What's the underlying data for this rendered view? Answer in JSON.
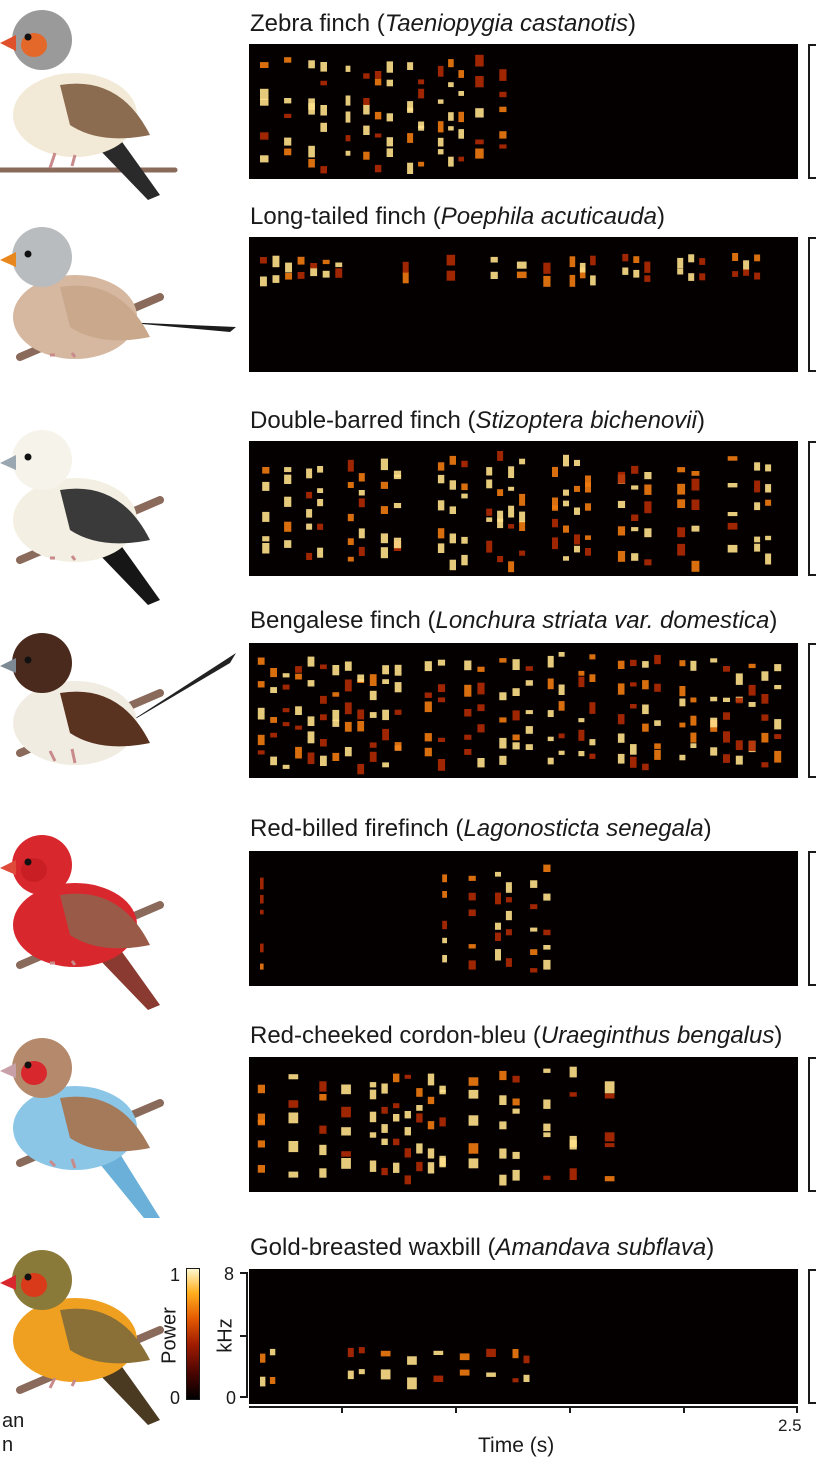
{
  "species": [
    {
      "common": "Zebra finch",
      "scientific": "Taeniopygia castanotis",
      "colors": {
        "body": "#f2ead6",
        "head": "#9a9a9a",
        "cheek": "#e4682a",
        "beak": "#e0502a",
        "wing": "#8c6c50",
        "tail": "#2a2a2a"
      }
    },
    {
      "common": "Long-tailed finch",
      "scientific": "Poephila acuticauda",
      "colors": {
        "body": "#d6b8a0",
        "head": "#b9bcbe",
        "cheek": "#b9bcbe",
        "beak": "#e8871e",
        "wing": "#c9a88c",
        "tail": "#1c1c1c"
      }
    },
    {
      "common": "Double-barred finch",
      "scientific": "Stizoptera bichenovii",
      "colors": {
        "body": "#f3efe2",
        "head": "#f6f3ea",
        "cheek": "#f6f3ea",
        "beak": "#9aa6b0",
        "wing": "#3a3a3a",
        "tail": "#161616"
      }
    },
    {
      "common": "Bengalese finch",
      "scientific": "Lonchura striata var. domestica",
      "colors": {
        "body": "#f1ece2",
        "head": "#4a2a1c",
        "cheek": "#4a2a1c",
        "beak": "#7d8a93",
        "wing": "#5a3220",
        "tail": "#222222"
      }
    },
    {
      "common": "Red-billed firefinch",
      "scientific": "Lagonosticta senegala",
      "colors": {
        "body": "#d8282e",
        "head": "#d8282e",
        "cheek": "#c81e24",
        "beak": "#e04a3a",
        "wing": "#9a5a48",
        "tail": "#8a3a30"
      }
    },
    {
      "common": "Red-cheeked cordon-bleu",
      "scientific": "Uraeginthus bengalus",
      "colors": {
        "body": "#8cc6e6",
        "head": "#b58a6c",
        "cheek": "#d8282e",
        "beak": "#c8a0a8",
        "wing": "#a47a5a",
        "tail": "#6ab0d8"
      }
    },
    {
      "common": "Gold-breasted waxbill",
      "scientific": "Amandava subflava",
      "colors": {
        "body": "#f0a020",
        "head": "#8a7a3a",
        "cheek": "#d83a1a",
        "beak": "#d8282e",
        "wing": "#8a7036",
        "tail": "#4a3a22"
      }
    }
  ],
  "colorbar": {
    "label": "Power",
    "max": "1",
    "min": "0"
  },
  "frequency_axis": {
    "label": "kHz",
    "max": "8",
    "min": "0"
  },
  "time_axis": {
    "label": "Time (s)",
    "max": "2.5"
  },
  "left_fragment": {
    "line1": "an",
    "line2": "n"
  }
}
